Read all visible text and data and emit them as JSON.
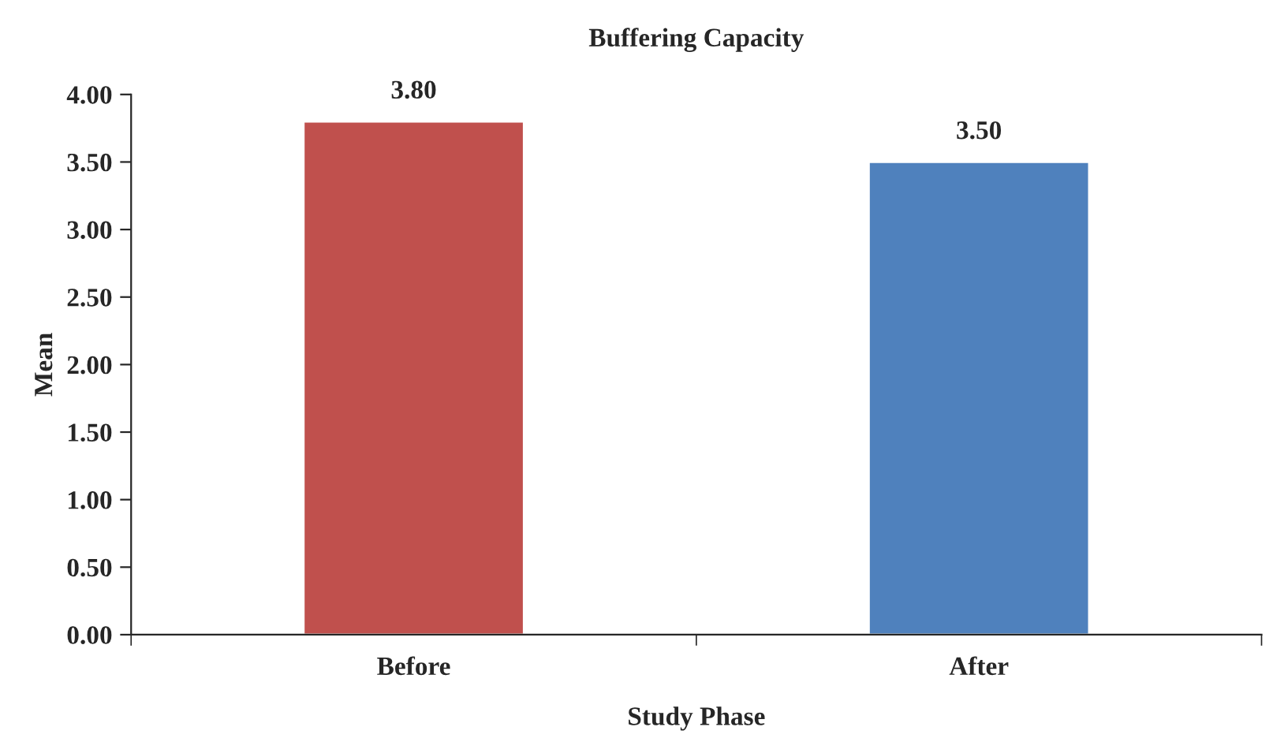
{
  "chart_data": {
    "type": "bar",
    "title": "Buffering Capacity",
    "xlabel": "Study Phase",
    "ylabel": "Mean",
    "categories": [
      "Before",
      "After"
    ],
    "values": [
      3.8,
      3.5
    ],
    "colors": [
      "#c0504d",
      "#4f81bd"
    ],
    "value_labels": [
      "3.80",
      "3.50"
    ],
    "ylim": [
      0,
      4
    ],
    "yticks": [
      {
        "value": 0,
        "label": "0.00"
      },
      {
        "value": 0.5,
        "label": "0.50"
      },
      {
        "value": 1,
        "label": "1.00"
      },
      {
        "value": 1.5,
        "label": "1.50"
      },
      {
        "value": 2,
        "label": "2.00"
      },
      {
        "value": 2.5,
        "label": "2.50"
      },
      {
        "value": 3,
        "label": "3.00"
      },
      {
        "value": 3.5,
        "label": "3.50"
      },
      {
        "value": 4,
        "label": "4.00"
      }
    ],
    "grid": false,
    "legend": false
  }
}
